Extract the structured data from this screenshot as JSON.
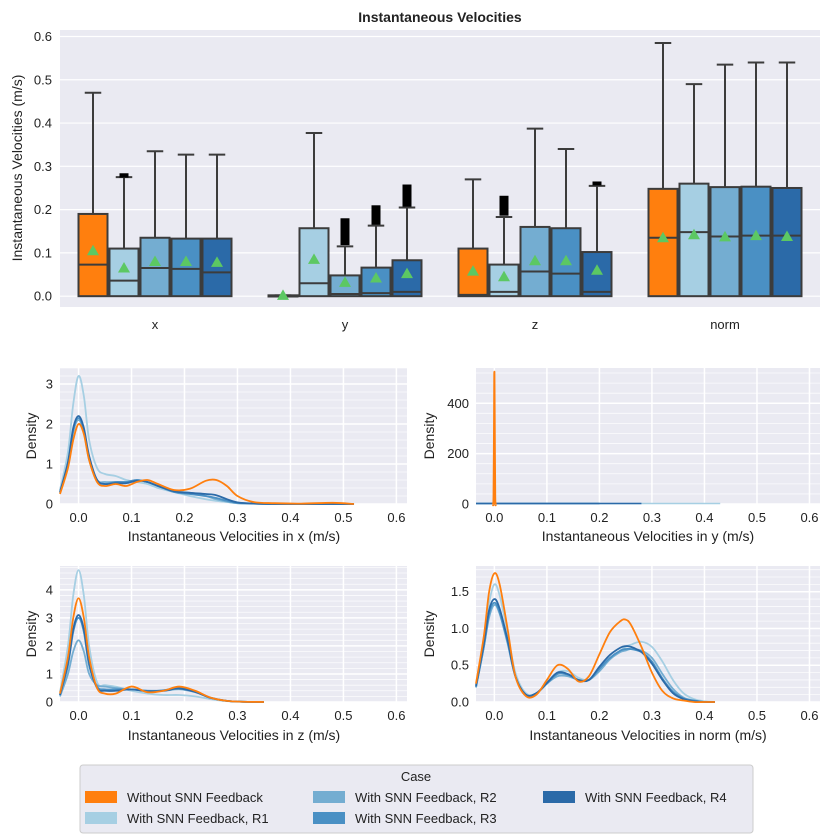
{
  "chart_data": [
    {
      "type": "box",
      "title": "Instantaneous Velocities",
      "ylabel": "Instantaneous Velocities (m/s)",
      "xlabel": "",
      "ylim": [
        -0.025,
        0.615
      ],
      "yticks": [
        0.0,
        0.1,
        0.2,
        0.3,
        0.4,
        0.5,
        0.6
      ],
      "ytick_labels": [
        "0.0",
        "0.1",
        "0.2",
        "0.3",
        "0.4",
        "0.5",
        "0.6"
      ],
      "categories": [
        "x",
        "y",
        "z",
        "norm"
      ],
      "markers": "triangle = mean, black bar = outliers",
      "series": [
        {
          "name": "Without SNN Feedback",
          "color": "#ff7f0e",
          "boxes": [
            {
              "q1": 0.0,
              "median": 0.073,
              "q3": 0.19,
              "whislo": 0.0,
              "whishi": 0.47,
              "mean": 0.105
            },
            {
              "q1": 0.0,
              "median": 0.0,
              "q3": 0.002,
              "whislo": 0.0,
              "whishi": 0.002,
              "mean": 0.002
            },
            {
              "q1": 0.0,
              "median": 0.003,
              "q3": 0.11,
              "whislo": 0.0,
              "whishi": 0.27,
              "mean": 0.058
            },
            {
              "q1": 0.0,
              "median": 0.135,
              "q3": 0.248,
              "whislo": 0.0,
              "whishi": 0.585,
              "mean": 0.135
            }
          ]
        },
        {
          "name": "With SNN Feedback, R1",
          "color": "#a6cfe3",
          "boxes": [
            {
              "q1": 0.0,
              "median": 0.036,
              "q3": 0.11,
              "whislo": 0.0,
              "whishi": 0.275,
              "mean": 0.065,
              "outliers": [
                0.274,
                0.284
              ]
            },
            {
              "q1": 0.0,
              "median": 0.03,
              "q3": 0.157,
              "whislo": 0.0,
              "whishi": 0.377,
              "mean": 0.085
            },
            {
              "q1": 0.0,
              "median": 0.01,
              "q3": 0.073,
              "whislo": 0.0,
              "whishi": 0.183,
              "mean": 0.045,
              "outliers": [
                0.186,
                0.232
              ]
            },
            {
              "q1": 0.0,
              "median": 0.148,
              "q3": 0.26,
              "whislo": 0.0,
              "whishi": 0.49,
              "mean": 0.142
            }
          ]
        },
        {
          "name": "With SNN Feedback, R2",
          "color": "#74add1",
          "boxes": [
            {
              "q1": 0.0,
              "median": 0.065,
              "q3": 0.135,
              "whislo": 0.0,
              "whishi": 0.335,
              "mean": 0.08
            },
            {
              "q1": 0.0,
              "median": 0.005,
              "q3": 0.048,
              "whislo": 0.0,
              "whishi": 0.115,
              "mean": 0.032,
              "outliers": [
                0.118,
                0.18
              ]
            },
            {
              "q1": 0.0,
              "median": 0.057,
              "q3": 0.16,
              "whislo": 0.0,
              "whishi": 0.387,
              "mean": 0.082
            },
            {
              "q1": 0.0,
              "median": 0.138,
              "q3": 0.252,
              "whislo": 0.0,
              "whishi": 0.535,
              "mean": 0.137
            }
          ]
        },
        {
          "name": "With SNN Feedback, R3",
          "color": "#4a90c4",
          "boxes": [
            {
              "q1": 0.0,
              "median": 0.063,
              "q3": 0.133,
              "whislo": 0.0,
              "whishi": 0.327,
              "mean": 0.08
            },
            {
              "q1": 0.0,
              "median": 0.007,
              "q3": 0.066,
              "whislo": 0.0,
              "whishi": 0.163,
              "mean": 0.042,
              "outliers": [
                0.165,
                0.21
              ]
            },
            {
              "q1": 0.0,
              "median": 0.052,
              "q3": 0.157,
              "whislo": 0.0,
              "whishi": 0.34,
              "mean": 0.082
            },
            {
              "q1": 0.0,
              "median": 0.14,
              "q3": 0.253,
              "whislo": 0.0,
              "whishi": 0.54,
              "mean": 0.14
            }
          ]
        },
        {
          "name": "With SNN Feedback, R4",
          "color": "#2b6aa8",
          "boxes": [
            {
              "q1": 0.0,
              "median": 0.055,
              "q3": 0.133,
              "whislo": 0.0,
              "whishi": 0.327,
              "mean": 0.078
            },
            {
              "q1": 0.0,
              "median": 0.01,
              "q3": 0.083,
              "whislo": 0.0,
              "whishi": 0.205,
              "mean": 0.052,
              "outliers": [
                0.207,
                0.258
              ]
            },
            {
              "q1": 0.0,
              "median": 0.01,
              "q3": 0.102,
              "whislo": 0.0,
              "whishi": 0.255,
              "mean": 0.06,
              "outliers": [
                0.256,
                0.265
              ]
            },
            {
              "q1": 0.0,
              "median": 0.14,
              "q3": 0.25,
              "whislo": 0.0,
              "whishi": 0.54,
              "mean": 0.138
            }
          ]
        }
      ]
    },
    {
      "type": "line",
      "subtype": "kde",
      "title": "",
      "xlabel": "Instantaneous Velocities in x (m/s)",
      "ylabel": "Density",
      "xlim": [
        -0.035,
        0.62
      ],
      "ylim": [
        0,
        3.4
      ],
      "xticks": [
        0.0,
        0.1,
        0.2,
        0.3,
        0.4,
        0.5,
        0.6
      ],
      "xtick_labels": [
        "0.0",
        "0.1",
        "0.2",
        "0.3",
        "0.4",
        "0.5",
        "0.6"
      ],
      "yticks": [
        0,
        1,
        2,
        3
      ],
      "ytick_labels": [
        "0",
        "1",
        "2",
        "3"
      ],
      "x": [
        -0.035,
        -0.02,
        -0.01,
        0.0,
        0.01,
        0.02,
        0.035,
        0.05,
        0.07,
        0.09,
        0.11,
        0.13,
        0.15,
        0.18,
        0.21,
        0.24,
        0.26,
        0.28,
        0.3,
        0.33,
        0.37,
        0.42,
        0.48,
        0.52
      ],
      "series": [
        {
          "name": "Without SNN Feedback",
          "color": "#ff7f0e",
          "values": [
            0.25,
            0.9,
            1.6,
            2.0,
            1.75,
            1.1,
            0.55,
            0.45,
            0.5,
            0.45,
            0.55,
            0.6,
            0.5,
            0.35,
            0.38,
            0.58,
            0.6,
            0.45,
            0.2,
            0.05,
            0.02,
            0.01,
            0.03,
            0.0
          ]
        },
        {
          "name": "With SNN Feedback, R1",
          "color": "#a6cfe3",
          "values": [
            0.35,
            1.3,
            2.5,
            3.2,
            2.7,
            1.6,
            0.9,
            0.75,
            0.7,
            0.6,
            0.55,
            0.5,
            0.4,
            0.3,
            0.2,
            0.12,
            0.08,
            0.05,
            0.02,
            0.01,
            0.0,
            0.0,
            0.0,
            0.0
          ]
        },
        {
          "name": "With SNN Feedback, R2",
          "color": "#74add1",
          "values": [
            0.28,
            1.0,
            1.8,
            2.1,
            1.8,
            1.1,
            0.6,
            0.55,
            0.55,
            0.55,
            0.6,
            0.55,
            0.45,
            0.32,
            0.28,
            0.2,
            0.12,
            0.06,
            0.02,
            0.01,
            0.0,
            0.0,
            0.0,
            0.0
          ]
        },
        {
          "name": "With SNN Feedback, R3",
          "color": "#4a90c4",
          "values": [
            0.28,
            1.0,
            1.85,
            2.15,
            1.85,
            1.15,
            0.6,
            0.5,
            0.55,
            0.55,
            0.6,
            0.55,
            0.45,
            0.3,
            0.25,
            0.2,
            0.15,
            0.08,
            0.03,
            0.01,
            0.0,
            0.0,
            0.0,
            0.0
          ]
        },
        {
          "name": "With SNN Feedback, R4",
          "color": "#2b6aa8",
          "values": [
            0.3,
            1.05,
            1.9,
            2.2,
            1.9,
            1.2,
            0.6,
            0.5,
            0.52,
            0.52,
            0.58,
            0.55,
            0.45,
            0.32,
            0.28,
            0.25,
            0.22,
            0.12,
            0.04,
            0.01,
            0.0,
            0.0,
            0.0,
            0.0
          ]
        }
      ]
    },
    {
      "type": "line",
      "subtype": "kde",
      "title": "",
      "xlabel": "Instantaneous Velocities in y (m/s)",
      "ylabel": "Density",
      "xlim": [
        -0.035,
        0.62
      ],
      "ylim": [
        0,
        540
      ],
      "xticks": [
        0.0,
        0.1,
        0.2,
        0.3,
        0.4,
        0.5,
        0.6
      ],
      "xtick_labels": [
        "0.0",
        "0.1",
        "0.2",
        "0.3",
        "0.4",
        "0.5",
        "0.6"
      ],
      "yticks": [
        0,
        200,
        400
      ],
      "ytick_labels": [
        "0",
        "200",
        "400"
      ],
      "x": [
        -0.003,
        -0.0015,
        -0.0005,
        0.0,
        0.0005,
        0.0015,
        0.003
      ],
      "series": [
        {
          "name": "Without SNN Feedback",
          "color": "#ff7f0e",
          "values": [
            0,
            30,
            350,
            525,
            350,
            30,
            0
          ]
        }
      ],
      "flat_series": [
        {
          "name": "With SNN Feedback, R1",
          "color": "#a6cfe3",
          "x_range": [
            -0.035,
            0.43
          ],
          "value": 2
        },
        {
          "name": "With SNN Feedback, R2",
          "color": "#74add1",
          "x_range": [
            -0.035,
            0.2
          ],
          "value": 2
        },
        {
          "name": "With SNN Feedback, R3",
          "color": "#4a90c4",
          "x_range": [
            -0.035,
            0.2
          ],
          "value": 2
        },
        {
          "name": "With SNN Feedback, R4",
          "color": "#2b6aa8",
          "x_range": [
            -0.035,
            0.28
          ],
          "value": 2
        }
      ]
    },
    {
      "type": "line",
      "subtype": "kde",
      "title": "",
      "xlabel": "Instantaneous Velocities in z (m/s)",
      "ylabel": "Density",
      "xlim": [
        -0.035,
        0.62
      ],
      "ylim": [
        0,
        4.85
      ],
      "xticks": [
        0.0,
        0.1,
        0.2,
        0.3,
        0.4,
        0.5,
        0.6
      ],
      "xtick_labels": [
        "0.0",
        "0.1",
        "0.2",
        "0.3",
        "0.4",
        "0.5",
        "0.6"
      ],
      "yticks": [
        0,
        1,
        2,
        3,
        4
      ],
      "ytick_labels": [
        "0",
        "1",
        "2",
        "3",
        "4"
      ],
      "x": [
        -0.035,
        -0.02,
        -0.01,
        0.0,
        0.01,
        0.02,
        0.035,
        0.05,
        0.07,
        0.1,
        0.13,
        0.16,
        0.19,
        0.22,
        0.25,
        0.28,
        0.31,
        0.35
      ],
      "series": [
        {
          "name": "Without SNN Feedback",
          "color": "#ff7f0e",
          "values": [
            0.3,
            1.6,
            3.0,
            3.7,
            3.0,
            1.6,
            0.5,
            0.3,
            0.3,
            0.55,
            0.35,
            0.4,
            0.55,
            0.4,
            0.15,
            0.04,
            0.01,
            0.0
          ]
        },
        {
          "name": "With SNN Feedback, R1",
          "color": "#a6cfe3",
          "values": [
            0.35,
            2.0,
            3.8,
            4.7,
            3.8,
            2.0,
            0.7,
            0.6,
            0.55,
            0.4,
            0.3,
            0.25,
            0.25,
            0.2,
            0.1,
            0.03,
            0.0,
            0.0
          ]
        },
        {
          "name": "With SNN Feedback, R2",
          "color": "#74add1",
          "values": [
            0.2,
            1.0,
            1.8,
            2.2,
            1.8,
            1.0,
            0.6,
            0.55,
            0.5,
            0.45,
            0.4,
            0.4,
            0.45,
            0.35,
            0.15,
            0.04,
            0.01,
            0.0
          ]
        },
        {
          "name": "With SNN Feedback, R3",
          "color": "#4a90c4",
          "values": [
            0.25,
            1.3,
            2.5,
            3.0,
            2.5,
            1.3,
            0.55,
            0.45,
            0.45,
            0.45,
            0.4,
            0.42,
            0.5,
            0.38,
            0.15,
            0.04,
            0.01,
            0.0
          ]
        },
        {
          "name": "With SNN Feedback, R4",
          "color": "#2b6aa8",
          "values": [
            0.25,
            1.4,
            2.6,
            3.1,
            2.6,
            1.4,
            0.5,
            0.4,
            0.4,
            0.45,
            0.38,
            0.4,
            0.48,
            0.36,
            0.14,
            0.04,
            0.01,
            0.0
          ]
        }
      ]
    },
    {
      "type": "line",
      "subtype": "kde",
      "title": "",
      "xlabel": "Instantaneous Velocities in norm (m/s)",
      "ylabel": "Density",
      "xlim": [
        -0.035,
        0.62
      ],
      "ylim": [
        0,
        1.85
      ],
      "xticks": [
        0.0,
        0.1,
        0.2,
        0.3,
        0.4,
        0.5,
        0.6
      ],
      "xtick_labels": [
        "0.0",
        "0.1",
        "0.2",
        "0.3",
        "0.4",
        "0.5",
        "0.6"
      ],
      "yticks": [
        0.0,
        0.5,
        1.0,
        1.5
      ],
      "ytick_labels": [
        "0.0",
        "0.5",
        "1.0",
        "1.5"
      ],
      "x": [
        -0.035,
        -0.02,
        -0.01,
        0.0,
        0.01,
        0.025,
        0.04,
        0.06,
        0.08,
        0.1,
        0.12,
        0.14,
        0.16,
        0.18,
        0.2,
        0.22,
        0.24,
        0.25,
        0.26,
        0.28,
        0.3,
        0.32,
        0.34,
        0.36,
        0.38,
        0.4,
        0.42
      ],
      "series": [
        {
          "name": "Without SNN Feedback",
          "color": "#ff7f0e",
          "values": [
            0.25,
            0.9,
            1.5,
            1.75,
            1.6,
            1.0,
            0.35,
            0.08,
            0.1,
            0.3,
            0.5,
            0.45,
            0.28,
            0.35,
            0.65,
            0.95,
            1.1,
            1.12,
            1.05,
            0.75,
            0.4,
            0.15,
            0.05,
            0.02,
            0.0,
            0.0,
            0.0
          ]
        },
        {
          "name": "With SNN Feedback, R1",
          "color": "#a6cfe3",
          "values": [
            0.22,
            0.85,
            1.35,
            1.6,
            1.45,
            0.95,
            0.4,
            0.12,
            0.12,
            0.25,
            0.4,
            0.42,
            0.33,
            0.3,
            0.42,
            0.58,
            0.7,
            0.75,
            0.78,
            0.82,
            0.75,
            0.55,
            0.3,
            0.12,
            0.04,
            0.01,
            0.0
          ]
        },
        {
          "name": "With SNN Feedback, R2",
          "color": "#74add1",
          "values": [
            0.2,
            0.75,
            1.15,
            1.32,
            1.2,
            0.8,
            0.35,
            0.1,
            0.12,
            0.25,
            0.35,
            0.35,
            0.3,
            0.3,
            0.42,
            0.58,
            0.68,
            0.7,
            0.72,
            0.7,
            0.6,
            0.38,
            0.18,
            0.06,
            0.02,
            0.0,
            0.0
          ]
        },
        {
          "name": "With SNN Feedback, R3",
          "color": "#4a90c4",
          "values": [
            0.2,
            0.75,
            1.2,
            1.35,
            1.22,
            0.82,
            0.35,
            0.1,
            0.12,
            0.25,
            0.38,
            0.37,
            0.3,
            0.3,
            0.45,
            0.6,
            0.7,
            0.72,
            0.72,
            0.68,
            0.55,
            0.32,
            0.14,
            0.05,
            0.02,
            0.0,
            0.0
          ]
        },
        {
          "name": "With SNN Feedback, R4",
          "color": "#2b6aa8",
          "values": [
            0.22,
            0.8,
            1.25,
            1.4,
            1.27,
            0.85,
            0.35,
            0.1,
            0.12,
            0.26,
            0.4,
            0.38,
            0.3,
            0.3,
            0.48,
            0.64,
            0.74,
            0.76,
            0.75,
            0.68,
            0.52,
            0.3,
            0.12,
            0.04,
            0.01,
            0.0,
            0.0
          ]
        }
      ]
    }
  ],
  "legend": {
    "title": "Case",
    "items": [
      {
        "label": "Without SNN Feedback",
        "color": "#ff7f0e"
      },
      {
        "label": "With SNN Feedback, R1",
        "color": "#a6cfe3"
      },
      {
        "label": "With SNN Feedback, R2",
        "color": "#74add1"
      },
      {
        "label": "With SNN Feedback, R3",
        "color": "#4a90c4"
      },
      {
        "label": "With SNN Feedback, R4",
        "color": "#2b6aa8"
      }
    ]
  },
  "colors": {
    "panel_bg": "#eaeaf2",
    "grid": "#ffffff",
    "mean_marker": "#5cc863",
    "outlier": "#000000",
    "edge": "#3c3c3c"
  }
}
